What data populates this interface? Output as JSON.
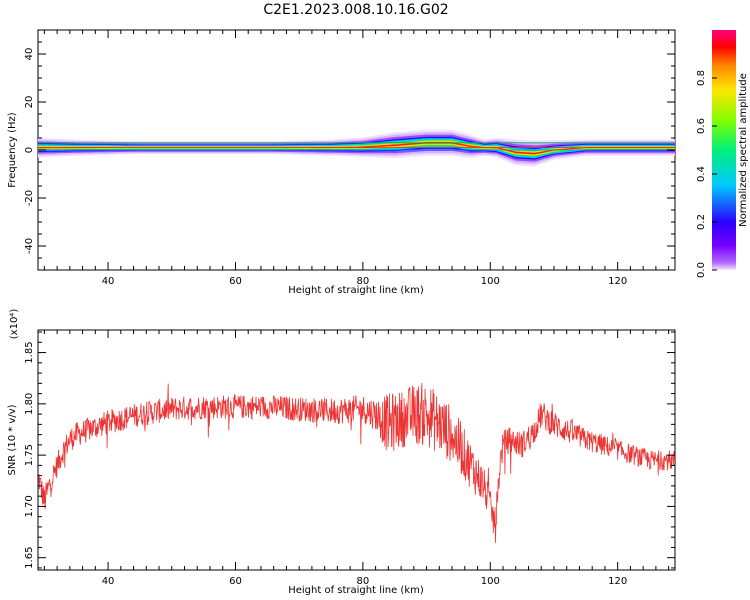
{
  "title": "C2E1.2023.008.10.16.G02",
  "colors": {
    "signal": "#ee3333",
    "axis": "#000000"
  },
  "chart_data": [
    {
      "type": "heatmap",
      "xlabel": "Height of straight line (km)",
      "ylabel": "Frequency (Hz)",
      "xlim": [
        29,
        129
      ],
      "ylim": [
        -50,
        50
      ],
      "x_ticks": [
        40,
        60,
        80,
        100,
        120
      ],
      "y_ticks": [
        -40,
        -20,
        0,
        20,
        40
      ],
      "colorbar": {
        "label": "Normalized spectral amplitude",
        "range": [
          0,
          1
        ],
        "ticks": [
          0.0,
          0.2,
          0.4,
          0.6,
          0.8
        ],
        "tick_labels": [
          "0.0",
          "0.2",
          "0.4",
          "0.6",
          "0.8"
        ],
        "colormap": "rainbow (purple-blue-cyan-green-yellow-red-magenta)"
      },
      "ridge": {
        "x": [
          29,
          35,
          45,
          55,
          65,
          75,
          80,
          85,
          90,
          94,
          97,
          99,
          101,
          104,
          107,
          110,
          115,
          120,
          125,
          129
        ],
        "peak_freq": [
          1,
          1,
          1,
          1,
          1,
          1,
          1.2,
          2,
          3,
          3,
          1.5,
          1,
          1,
          -1,
          -1.5,
          0,
          1,
          1,
          1,
          1
        ],
        "halfwidth": [
          3,
          2.5,
          2,
          2,
          2,
          2.5,
          3,
          4,
          4,
          4,
          3.5,
          2.5,
          3,
          4,
          4,
          3,
          2.5,
          2.5,
          2.5,
          2.5
        ]
      }
    },
    {
      "type": "line",
      "xlabel": "Height of straight line (km)",
      "ylabel": "SNR (10 * v/v)",
      "y_multiplier": "(x10⁴)",
      "xlim": [
        29,
        129
      ],
      "ylim": [
        1.638,
        1.872
      ],
      "x_ticks": [
        40,
        60,
        80,
        100,
        120
      ],
      "y_ticks": [
        1.65,
        1.7,
        1.75,
        1.8,
        1.85
      ],
      "y_tick_labels": [
        "1.65",
        "1.70",
        "1.75",
        "1.80",
        "1.85"
      ],
      "series": [
        {
          "x": [
            29,
            30,
            31,
            32,
            33,
            34,
            35,
            37,
            40,
            45,
            50,
            55,
            60,
            65,
            70,
            75,
            80,
            82,
            84,
            86,
            88,
            90,
            92,
            94,
            96,
            98,
            99,
            100,
            100.8,
            101.5,
            102,
            103,
            105,
            107,
            108,
            110,
            115,
            120,
            125,
            129
          ],
          "mean": [
            1.73,
            1.705,
            1.725,
            1.74,
            1.755,
            1.765,
            1.77,
            1.775,
            1.782,
            1.79,
            1.795,
            1.797,
            1.797,
            1.797,
            1.795,
            1.793,
            1.795,
            1.79,
            1.78,
            1.785,
            1.79,
            1.79,
            1.78,
            1.77,
            1.75,
            1.73,
            1.72,
            1.7,
            1.68,
            1.74,
            1.76,
            1.765,
            1.76,
            1.775,
            1.79,
            1.78,
            1.765,
            1.755,
            1.745,
            1.745
          ],
          "amp": [
            0.012,
            0.015,
            0.012,
            0.012,
            0.012,
            0.012,
            0.012,
            0.012,
            0.012,
            0.012,
            0.012,
            0.012,
            0.012,
            0.012,
            0.012,
            0.013,
            0.014,
            0.016,
            0.03,
            0.028,
            0.03,
            0.032,
            0.03,
            0.028,
            0.025,
            0.022,
            0.018,
            0.016,
            0.018,
            0.015,
            0.014,
            0.013,
            0.013,
            0.012,
            0.014,
            0.013,
            0.011,
            0.01,
            0.01,
            0.01
          ]
        }
      ]
    }
  ]
}
